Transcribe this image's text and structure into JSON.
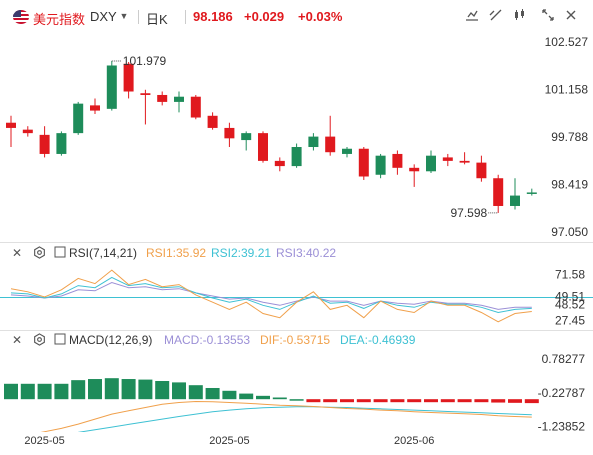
{
  "header": {
    "symbol_name": "美元指数",
    "symbol_code": "DXY",
    "period": "日K",
    "last_price": "98.186",
    "change": "+0.029",
    "change_pct": "+0.03%"
  },
  "main_chart": {
    "y_labels": [
      "102.527",
      "101.158",
      "99.788",
      "98.419",
      "97.050"
    ],
    "high_marker": "101.979",
    "low_marker": "97.598",
    "candles": [
      {
        "o": 100.2,
        "h": 100.4,
        "l": 99.5,
        "c": 100.05
      },
      {
        "o": 100.0,
        "h": 100.1,
        "l": 99.8,
        "c": 99.9
      },
      {
        "o": 99.85,
        "h": 100.1,
        "l": 99.2,
        "c": 99.3
      },
      {
        "o": 99.3,
        "h": 99.95,
        "l": 99.25,
        "c": 99.9
      },
      {
        "o": 99.9,
        "h": 100.8,
        "l": 99.85,
        "c": 100.75
      },
      {
        "o": 100.7,
        "h": 100.9,
        "l": 100.45,
        "c": 100.55
      },
      {
        "o": 100.6,
        "h": 101.98,
        "l": 100.55,
        "c": 101.85
      },
      {
        "o": 101.9,
        "h": 101.95,
        "l": 100.9,
        "c": 101.1
      },
      {
        "o": 101.05,
        "h": 101.15,
        "l": 100.15,
        "c": 101.0
      },
      {
        "o": 101.0,
        "h": 101.1,
        "l": 100.7,
        "c": 100.8
      },
      {
        "o": 100.8,
        "h": 101.1,
        "l": 100.5,
        "c": 100.95
      },
      {
        "o": 100.95,
        "h": 101.0,
        "l": 100.3,
        "c": 100.35
      },
      {
        "o": 100.4,
        "h": 100.5,
        "l": 100.0,
        "c": 100.05
      },
      {
        "o": 100.05,
        "h": 100.2,
        "l": 99.5,
        "c": 99.75
      },
      {
        "o": 99.7,
        "h": 99.95,
        "l": 99.4,
        "c": 99.9
      },
      {
        "o": 99.9,
        "h": 99.95,
        "l": 99.05,
        "c": 99.1
      },
      {
        "o": 99.1,
        "h": 99.2,
        "l": 98.8,
        "c": 98.95
      },
      {
        "o": 98.95,
        "h": 99.6,
        "l": 98.9,
        "c": 99.5
      },
      {
        "o": 99.5,
        "h": 99.9,
        "l": 99.4,
        "c": 99.8
      },
      {
        "o": 99.8,
        "h": 100.4,
        "l": 99.25,
        "c": 99.35
      },
      {
        "o": 99.3,
        "h": 99.5,
        "l": 99.2,
        "c": 99.45
      },
      {
        "o": 99.45,
        "h": 99.5,
        "l": 98.55,
        "c": 98.65
      },
      {
        "o": 98.7,
        "h": 99.3,
        "l": 98.6,
        "c": 99.25
      },
      {
        "o": 99.3,
        "h": 99.4,
        "l": 98.7,
        "c": 98.9
      },
      {
        "o": 98.9,
        "h": 99.0,
        "l": 98.35,
        "c": 98.8
      },
      {
        "o": 98.8,
        "h": 99.4,
        "l": 98.75,
        "c": 99.25
      },
      {
        "o": 99.2,
        "h": 99.3,
        "l": 98.95,
        "c": 99.1
      },
      {
        "o": 99.1,
        "h": 99.35,
        "l": 99.0,
        "c": 99.05
      },
      {
        "o": 99.05,
        "h": 99.25,
        "l": 98.5,
        "c": 98.6
      },
      {
        "o": 98.6,
        "h": 98.7,
        "l": 97.6,
        "c": 97.8
      },
      {
        "o": 97.8,
        "h": 98.6,
        "l": 97.7,
        "c": 98.1
      },
      {
        "o": 98.15,
        "h": 98.3,
        "l": 98.1,
        "c": 98.19
      }
    ]
  },
  "rsi_panel": {
    "title": "RSI(7,14,21)",
    "rsi1_label": "RSI1:35.92",
    "rsi2_label": "RSI2:39.21",
    "rsi3_label": "RSI3:40.22",
    "y_labels": [
      "71.58",
      "49.51",
      "48.52",
      "27.45"
    ],
    "rsi1": [
      58,
      55,
      50,
      57,
      68,
      63,
      76,
      62,
      67,
      60,
      62,
      52,
      45,
      38,
      45,
      34,
      30,
      45,
      55,
      38,
      42,
      30,
      46,
      38,
      35,
      46,
      42,
      42,
      35,
      26,
      34,
      36
    ],
    "rsi2": [
      54,
      53,
      49,
      53,
      61,
      59,
      69,
      61,
      63,
      59,
      60,
      54,
      49,
      45,
      48,
      42,
      38,
      45,
      51,
      44,
      45,
      39,
      46,
      42,
      40,
      45,
      43,
      43,
      40,
      35,
      38,
      39
    ],
    "rsi3": [
      52,
      51,
      49,
      51,
      57,
      56,
      64,
      59,
      60,
      57,
      58,
      54,
      51,
      48,
      49,
      45,
      42,
      46,
      50,
      46,
      46,
      42,
      46,
      44,
      43,
      46,
      44,
      44,
      42,
      38,
      40,
      40
    ]
  },
  "macd_panel": {
    "title": "MACD(12,26,9)",
    "macd_label": "MACD:-0.13553",
    "dif_label": "DIF:-0.53715",
    "dea_label": "DEA:-0.46939",
    "y_labels": [
      "0.78277",
      "-0.22787",
      "-1.23852"
    ],
    "macd": [
      0.55,
      0.55,
      0.55,
      0.55,
      0.68,
      0.72,
      0.75,
      0.72,
      0.7,
      0.65,
      0.6,
      0.5,
      0.4,
      0.3,
      0.2,
      0.12,
      0.06,
      0.0,
      -0.06,
      -0.07,
      -0.06,
      -0.07,
      -0.07,
      -0.08,
      -0.09,
      -0.08,
      -0.08,
      -0.09,
      -0.1,
      -0.12,
      -0.13,
      -0.14
    ],
    "dif": [
      -1.15,
      -1.08,
      -0.98,
      -0.88,
      -0.75,
      -0.6,
      -0.45,
      -0.35,
      -0.25,
      -0.15,
      -0.1,
      -0.07,
      -0.08,
      -0.1,
      -0.12,
      -0.15,
      -0.18,
      -0.2,
      -0.22,
      -0.25,
      -0.28,
      -0.3,
      -0.33,
      -0.35,
      -0.38,
      -0.4,
      -0.42,
      -0.44,
      -0.46,
      -0.5,
      -0.52,
      -0.54
    ],
    "dea": [
      -1.2,
      -1.16,
      -1.12,
      -1.06,
      -1.0,
      -0.92,
      -0.84,
      -0.76,
      -0.68,
      -0.6,
      -0.52,
      -0.45,
      -0.38,
      -0.33,
      -0.29,
      -0.26,
      -0.24,
      -0.23,
      -0.23,
      -0.24,
      -0.25,
      -0.27,
      -0.29,
      -0.31,
      -0.33,
      -0.35,
      -0.37,
      -0.39,
      -0.41,
      -0.43,
      -0.45,
      -0.47
    ]
  },
  "x_axis": {
    "labels": [
      "2025-05",
      "2025-05",
      "2025-06"
    ],
    "label_indices": [
      2,
      13,
      24
    ]
  },
  "colors": {
    "up": "#1e8c5a",
    "down": "#e0191e",
    "rsi1": "#f0a04b",
    "rsi2": "#3ec1d3",
    "rsi3": "#9b8fd6",
    "dif": "#f0a04b",
    "dea": "#3ec1d3",
    "axis_text": "#333333",
    "price_red": "#e0191e"
  }
}
